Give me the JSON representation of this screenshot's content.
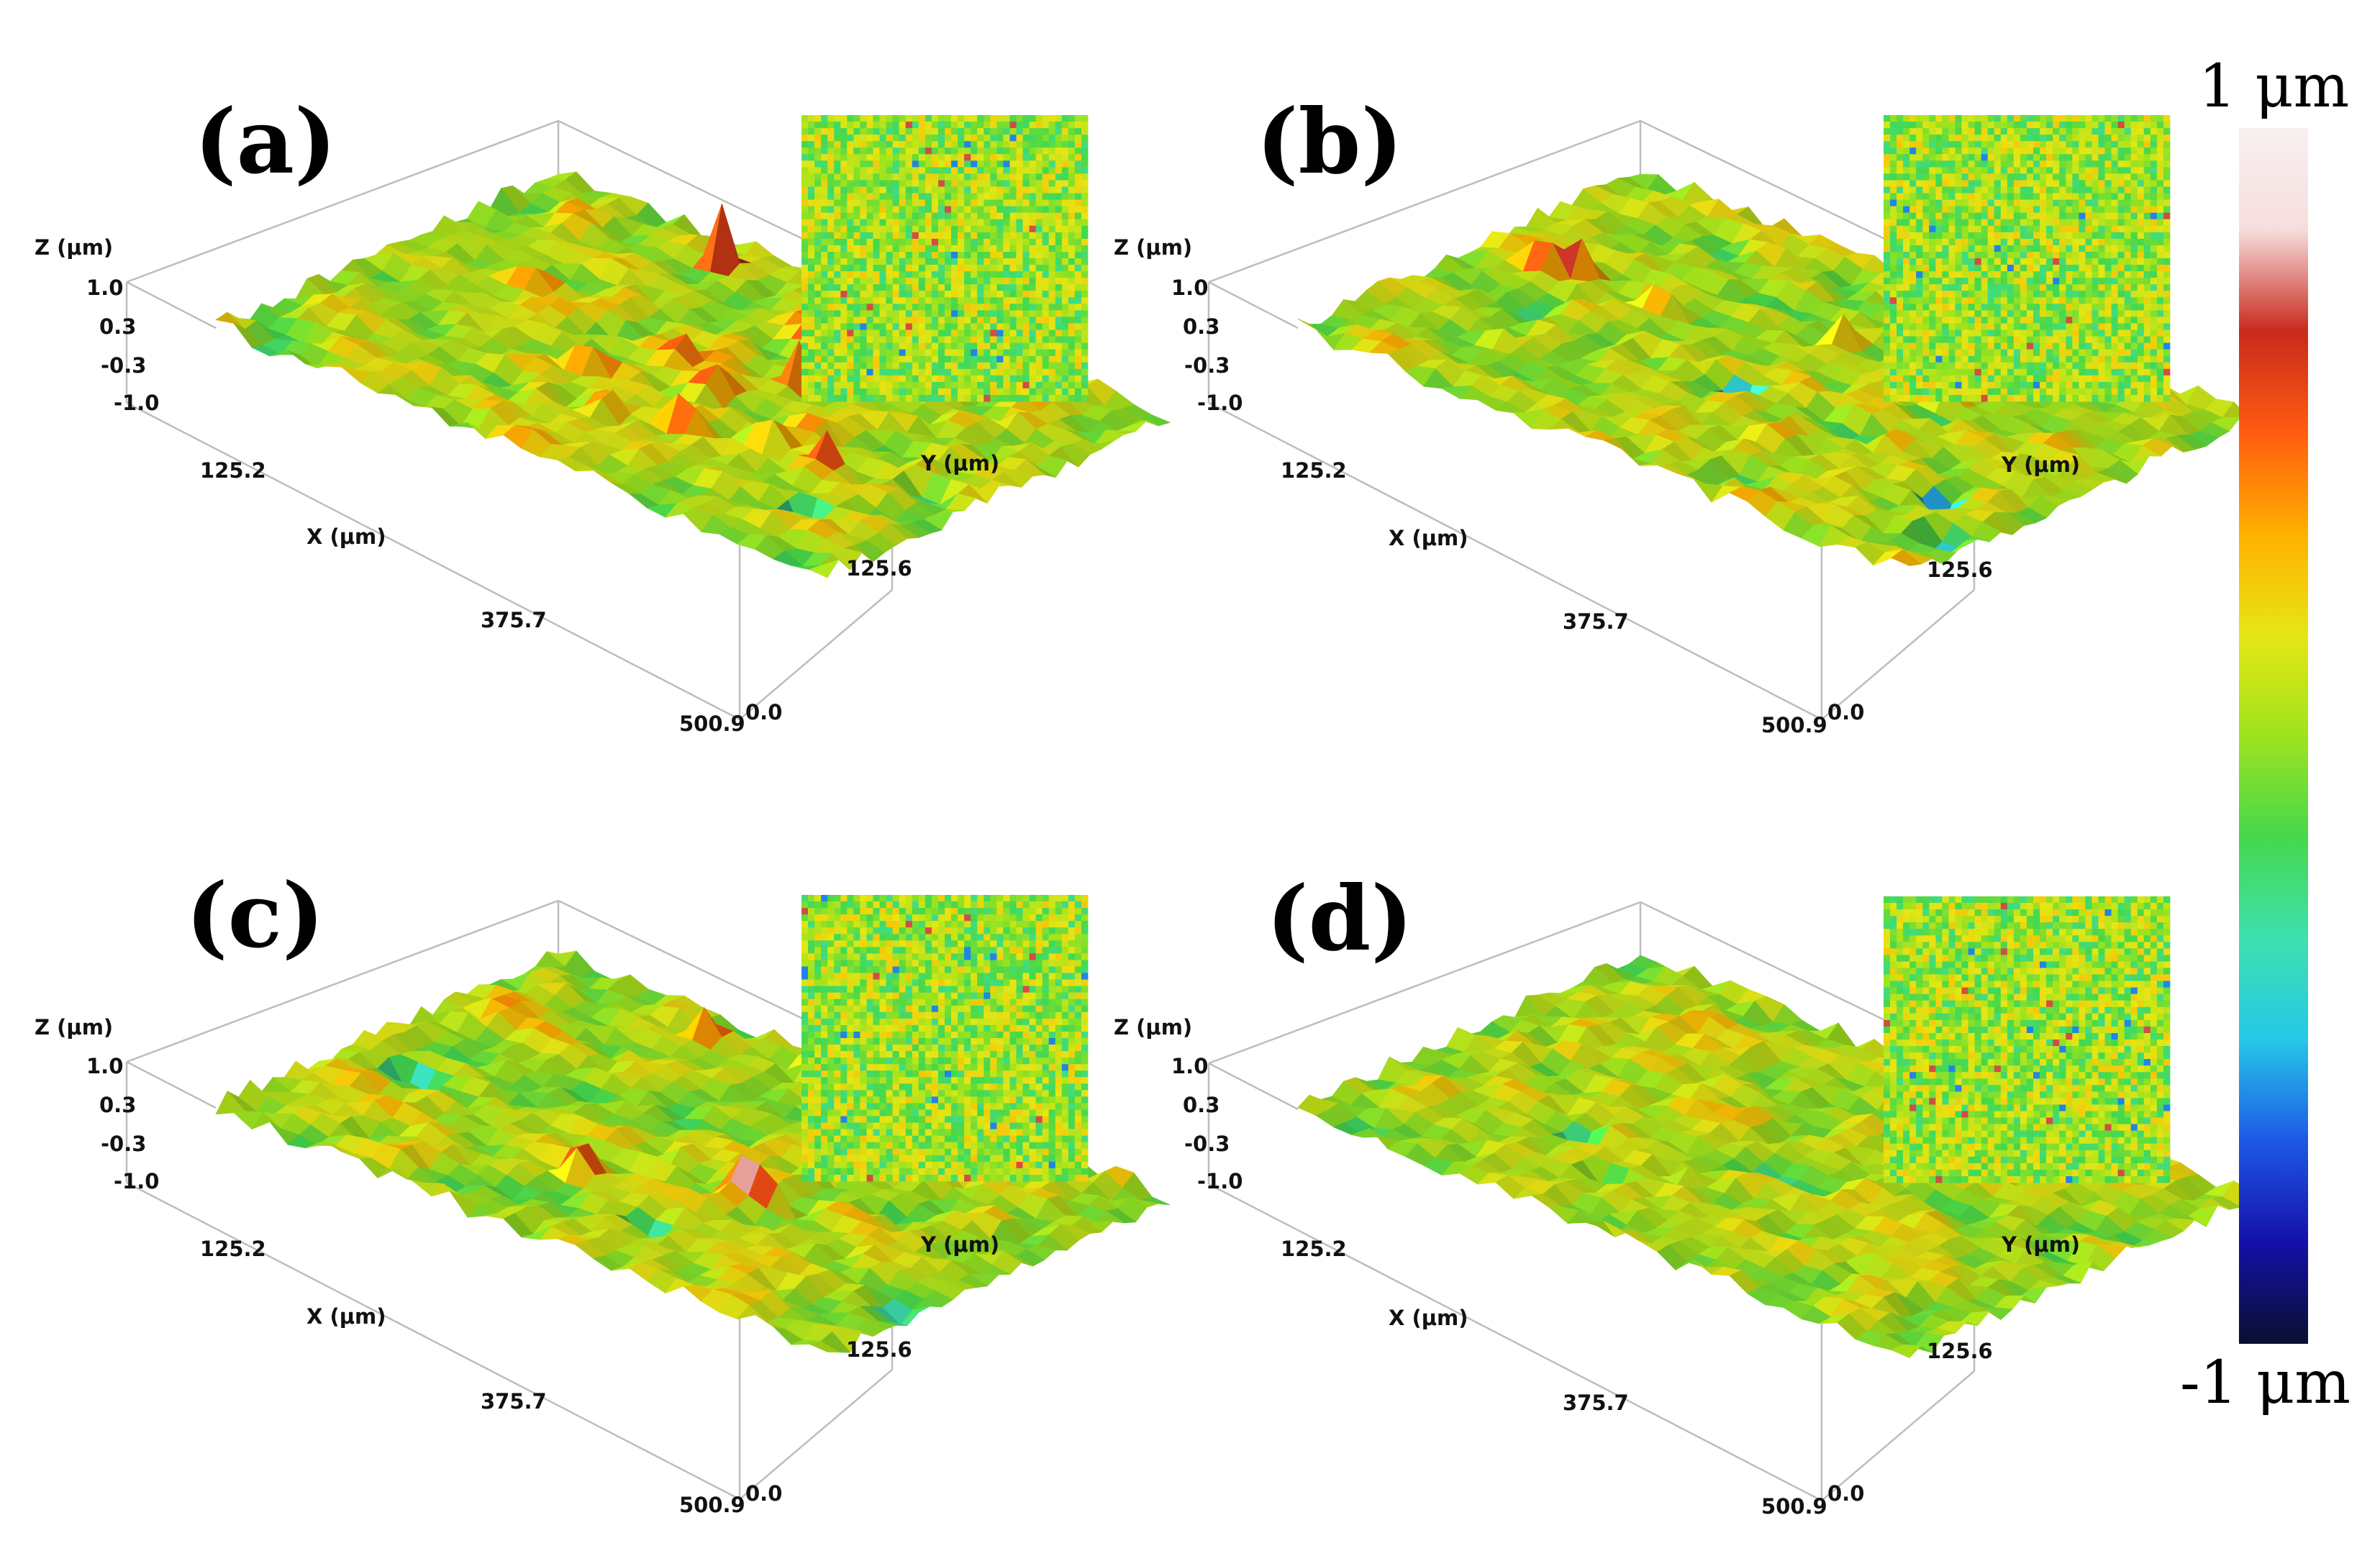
{
  "chart_data": {
    "type": "heatmap",
    "title": "",
    "colorbar": {
      "max_label": "1 μm",
      "min_label": "-1 μm",
      "range": [
        -1,
        1
      ],
      "colors": [
        "#0a0f2e",
        "#1410a8",
        "#1e58e6",
        "#25c8e6",
        "#3de0b0",
        "#45d84c",
        "#9ee31e",
        "#e6e614",
        "#ffb000",
        "#ff5c10",
        "#c82a1c",
        "#f7dede",
        "#f8f0f0"
      ]
    },
    "axes": {
      "z_label": "Z (μm)",
      "x_label": "X (μm)",
      "y_label": "Y (μm)",
      "z_ticks": [
        "1.0",
        "0.3",
        "-0.3",
        "-1.0"
      ],
      "x_ticks": [
        "125.2",
        "375.7",
        "500.9"
      ],
      "y_ticks": [
        "125.6",
        "0.0"
      ]
    },
    "panels": [
      {
        "label": "(a)",
        "seed": 11,
        "peaks": [
          [
            0.32,
            0.1,
            0.9
          ],
          [
            0.52,
            0.18,
            0.8
          ],
          [
            0.55,
            0.24,
            0.9
          ],
          [
            0.6,
            0.28,
            0.8
          ],
          [
            0.64,
            0.3,
            0.85
          ],
          [
            0.2,
            0.42,
            0.6
          ],
          [
            0.48,
            0.48,
            0.9
          ],
          [
            0.55,
            0.55,
            0.95
          ],
          [
            0.62,
            0.4,
            0.7
          ],
          [
            0.4,
            0.62,
            0.8
          ],
          [
            0.72,
            0.52,
            0.7
          ],
          [
            0.7,
            0.62,
            0.75
          ],
          [
            0.8,
            0.64,
            0.8
          ],
          [
            0.74,
            0.2,
            0.95
          ],
          [
            0.6,
            0.7,
            0.7
          ],
          [
            0.5,
            0.75,
            0.6
          ]
        ],
        "pits": [
          [
            0.92,
            0.58,
            0.7
          ],
          [
            0.85,
            0.8,
            0.5
          ]
        ]
      },
      {
        "label": "(b)",
        "seed": 23,
        "peaks": [
          [
            0.1,
            0.46,
            0.8
          ],
          [
            0.14,
            0.44,
            0.7
          ],
          [
            0.28,
            0.44,
            0.6
          ],
          [
            0.5,
            0.3,
            0.5
          ],
          [
            0.7,
            0.35,
            0.5
          ]
        ],
        "pits": [
          [
            0.5,
            0.6,
            0.8
          ],
          [
            0.88,
            0.7,
            0.9
          ],
          [
            0.95,
            0.82,
            0.6
          ]
        ]
      },
      {
        "label": "(c)",
        "seed": 37,
        "peaks": [
          [
            0.44,
            0.72,
            0.8
          ],
          [
            0.62,
            0.58,
            0.85
          ],
          [
            0.66,
            0.56,
            0.9
          ],
          [
            0.3,
            0.1,
            0.4
          ],
          [
            0.45,
            0.05,
            0.4
          ]
        ],
        "pits": [
          [
            0.1,
            0.6,
            0.6
          ],
          [
            0.96,
            0.72,
            1.0
          ],
          [
            0.6,
            0.8,
            0.5
          ]
        ]
      },
      {
        "label": "(d)",
        "seed": 53,
        "peaks": [
          [
            0.62,
            0.1,
            0.8
          ],
          [
            0.66,
            0.08,
            0.9
          ],
          [
            0.72,
            0.3,
            0.4
          ]
        ],
        "pits": [
          [
            0.4,
            0.8,
            0.5
          ],
          [
            0.3,
            0.7,
            0.4
          ],
          [
            0.8,
            0.78,
            0.4
          ]
        ]
      }
    ]
  }
}
